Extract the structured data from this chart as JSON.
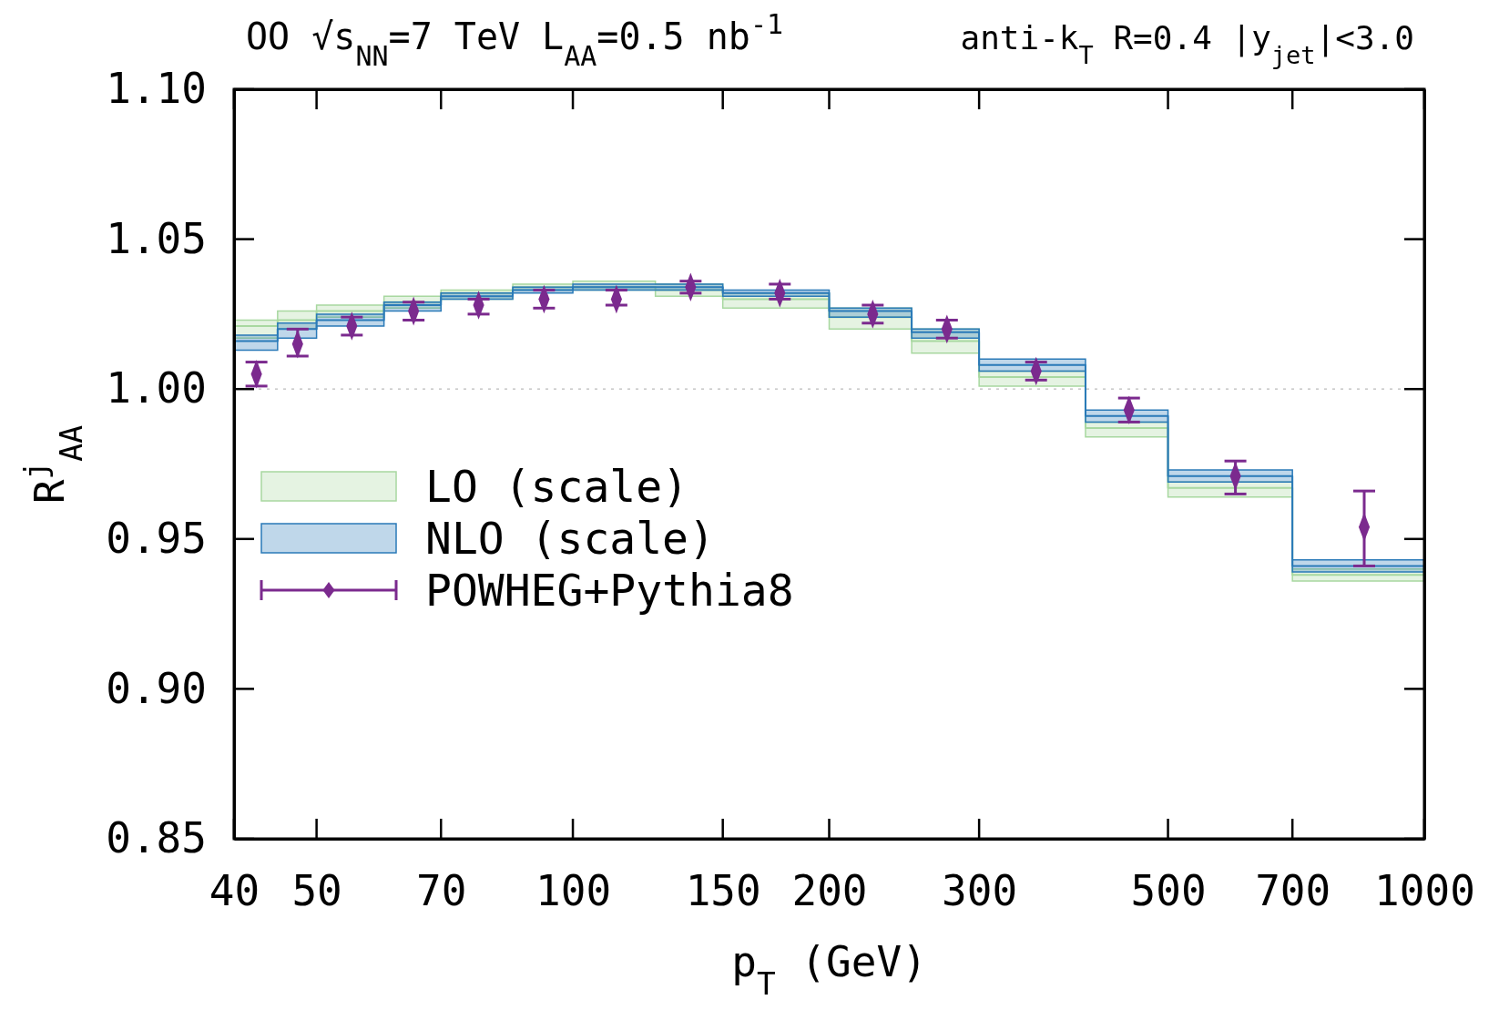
{
  "chart_data": {
    "type": "step",
    "title": "OO √s$_{NN}$=7 TeV L$_{AA}$=0.5 nb$^{-1}$",
    "subtitle": "anti-k$_{T}$ R=0.4 |y$_{jet}$|<3.0",
    "xlabel": "p$_{T}$ (GeV)",
    "ylabel": "R$^{j}$$_{AA}$",
    "log": "x",
    "xlim": [
      40,
      1000
    ],
    "xticks": [
      40,
      50,
      70,
      100,
      150,
      200,
      300,
      500,
      700,
      1000
    ],
    "ylim": [
      0.85,
      1.1
    ],
    "yticks": [
      {
        "value": 0.85,
        "label": "0.85"
      },
      {
        "value": 0.9,
        "label": "0.90"
      },
      {
        "value": 0.95,
        "label": "0.95"
      },
      {
        "value": 1.0,
        "label": "1.00"
      },
      {
        "value": 1.05,
        "label": "1.05"
      },
      {
        "value": 1.1,
        "label": "1.10"
      }
    ],
    "legend": "left",
    "grid": false,
    "ref_lines": [
      {
        "axis": "y",
        "value": 1.0,
        "color": "#bbbbbb",
        "line_style": "dotted"
      }
    ],
    "series": [
      {
        "name": "LO (scale)",
        "color": "#a8d8a0",
        "x": [
          40,
          45,
          50,
          60,
          70,
          85,
          100,
          125,
          150,
          200,
          250,
          300,
          400,
          500,
          700,
          1000
        ],
        "values": [
          1.021,
          1.023,
          1.026,
          1.029,
          1.032,
          1.034,
          1.034,
          1.033,
          1.03,
          1.024,
          1.016,
          1.004,
          0.987,
          0.967,
          0.938,
          0.938
        ],
        "lower": [
          1.017,
          1.02,
          1.024,
          1.027,
          1.03,
          1.033,
          1.033,
          1.031,
          1.027,
          1.02,
          1.012,
          1.001,
          0.984,
          0.964,
          0.936,
          0.936
        ],
        "upper": [
          1.023,
          1.026,
          1.028,
          1.031,
          1.033,
          1.035,
          1.036,
          1.035,
          1.032,
          1.027,
          1.02,
          1.006,
          0.989,
          0.969,
          0.94,
          0.94
        ]
      },
      {
        "name": "NLO (scale)",
        "color": "#2a7ab8",
        "x": [
          40,
          45,
          50,
          60,
          70,
          85,
          100,
          125,
          150,
          200,
          250,
          300,
          400,
          500,
          700,
          1000
        ],
        "values": [
          1.016,
          1.02,
          1.023,
          1.028,
          1.031,
          1.033,
          1.034,
          1.034,
          1.032,
          1.026,
          1.019,
          1.008,
          0.991,
          0.971,
          0.941,
          0.941
        ],
        "lower": [
          1.013,
          1.017,
          1.021,
          1.026,
          1.03,
          1.032,
          1.033,
          1.033,
          1.031,
          1.024,
          1.017,
          1.006,
          0.989,
          0.969,
          0.939,
          0.939
        ],
        "upper": [
          1.018,
          1.022,
          1.025,
          1.029,
          1.032,
          1.034,
          1.035,
          1.035,
          1.033,
          1.027,
          1.02,
          1.01,
          0.993,
          0.973,
          0.943,
          0.943
        ]
      },
      {
        "name": "POWHEG+Pythia8",
        "type": "scatter",
        "marker": "diamond",
        "color": "#7b2a8e",
        "x": [
          42.5,
          47.5,
          55,
          65,
          77.5,
          92.5,
          112.5,
          137.5,
          175,
          225,
          275,
          350,
          450,
          600,
          850
        ],
        "values": [
          1.005,
          1.015,
          1.021,
          1.026,
          1.028,
          1.03,
          1.03,
          1.034,
          1.032,
          1.025,
          1.02,
          1.006,
          0.993,
          0.971,
          0.954
        ],
        "errors": [
          [
            1.001,
            1.009
          ],
          [
            1.011,
            1.02
          ],
          [
            1.018,
            1.024
          ],
          [
            1.023,
            1.029
          ],
          [
            1.025,
            1.03
          ],
          [
            1.027,
            1.033
          ],
          [
            1.028,
            1.033
          ],
          [
            1.032,
            1.036
          ],
          [
            1.03,
            1.035
          ],
          [
            1.022,
            1.028
          ],
          [
            1.017,
            1.023
          ],
          [
            1.003,
            1.009
          ],
          [
            0.989,
            0.997
          ],
          [
            0.965,
            0.976
          ],
          [
            0.941,
            0.966
          ]
        ]
      }
    ]
  }
}
